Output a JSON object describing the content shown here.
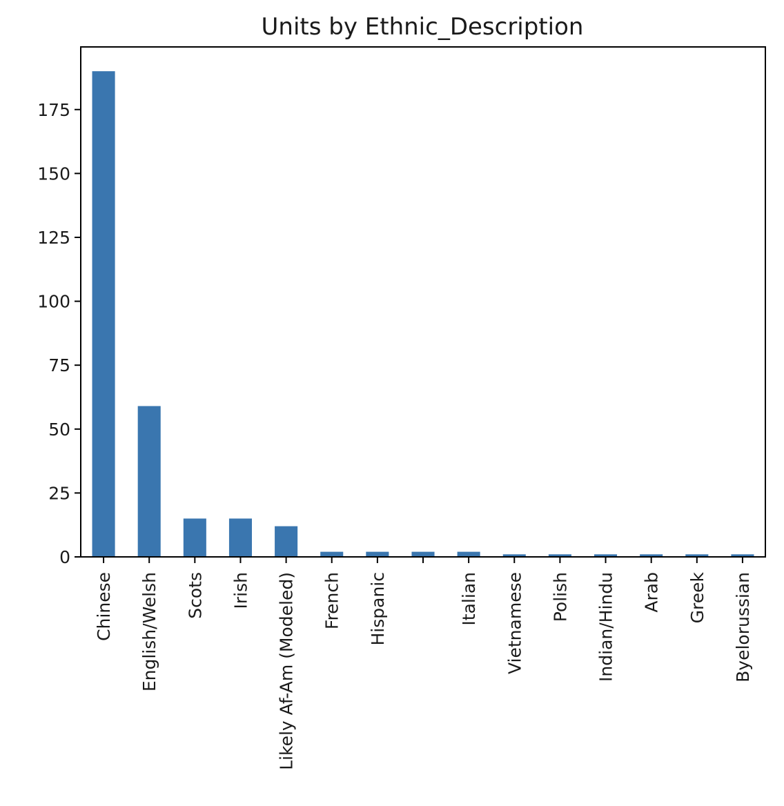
{
  "chart_data": {
    "type": "bar",
    "title": "Units by Ethnic_Description",
    "xlabel": "",
    "ylabel": "",
    "categories": [
      "Chinese",
      "English/Welsh",
      "Scots",
      "Irish",
      "Likely Af-Am (Modeled)",
      "French",
      "Hispanic",
      "",
      "Italian",
      "Vietnamese",
      "Polish",
      "Indian/Hindu",
      "Arab",
      "Greek",
      "Byelorussian"
    ],
    "values": [
      190,
      59,
      15,
      15,
      12,
      2,
      2,
      2,
      2,
      1,
      1,
      1,
      1,
      1,
      1
    ],
    "ylim": [
      0,
      199.5
    ],
    "yticks": [
      0,
      25,
      50,
      75,
      100,
      125,
      150,
      175
    ],
    "grid": false,
    "legend": "none",
    "bar_color": "#3a76af"
  }
}
